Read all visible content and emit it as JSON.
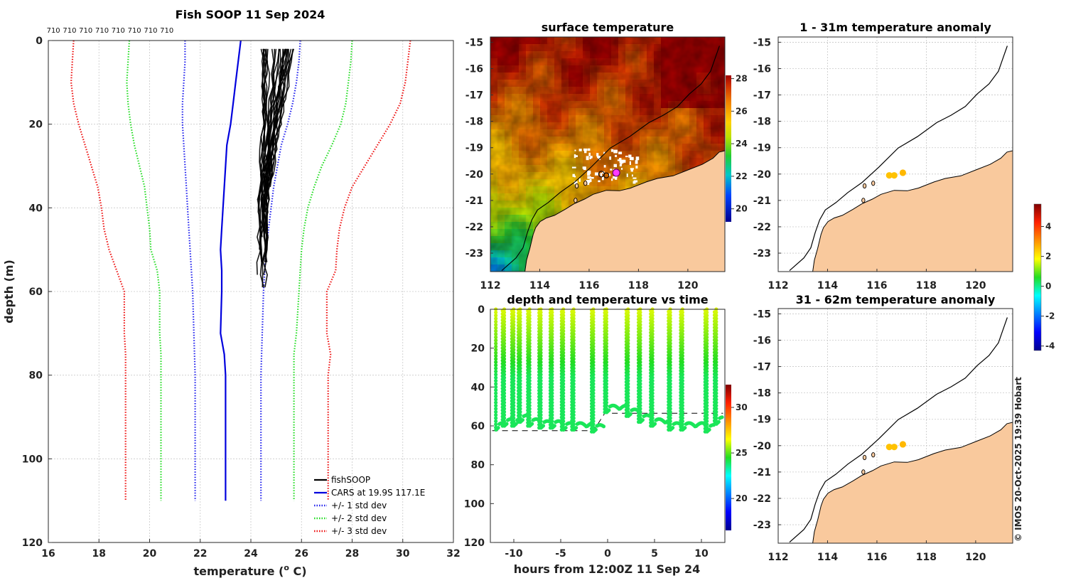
{
  "colors": {
    "land": "#f9c99d",
    "soop": "#000000",
    "cars": "#0000dd",
    "std1": "#2222ee",
    "std2": "#22dd22",
    "std3": "#ee1111",
    "track": "#6dd61c"
  },
  "chart_data": [
    {
      "type": "line",
      "title": "Fish SOOP 11 Sep 2024",
      "xlabel": "temperature (",
      "xlabel_sup": "o",
      "xlabel_tail": " C)",
      "ylabel": "depth (m)",
      "xlim": [
        16,
        32
      ],
      "ylim": [
        0,
        120
      ],
      "xticks": [
        16,
        18,
        20,
        22,
        24,
        26,
        28,
        30,
        32
      ],
      "yticks": [
        0,
        20,
        40,
        60,
        80,
        100,
        120
      ],
      "top_labels": {
        "text": "710",
        "count": 8,
        "start": 16.2,
        "step": 0.64
      },
      "legend": [
        "fishSOOP",
        "CARS at 19.9S 117.1E",
        "+/- 1 std dev",
        "+/- 2 std dev",
        "+/- 3 std dev"
      ],
      "series": [
        {
          "name": "CARS at 19.9S 117.1E",
          "points": [
            [
              23.6,
              0
            ],
            [
              23.5,
              5
            ],
            [
              23.4,
              10
            ],
            [
              23.3,
              15
            ],
            [
              23.2,
              20
            ],
            [
              23.05,
              25
            ],
            [
              23.0,
              30
            ],
            [
              22.95,
              35
            ],
            [
              22.9,
              40
            ],
            [
              22.85,
              45
            ],
            [
              22.8,
              50
            ],
            [
              22.85,
              55
            ],
            [
              22.85,
              60
            ],
            [
              22.8,
              70
            ],
            [
              22.95,
              75
            ],
            [
              23.0,
              80
            ],
            [
              23.0,
              90
            ],
            [
              23.0,
              100
            ],
            [
              23.0,
              110
            ]
          ]
        },
        {
          "name": "-1 std",
          "points": [
            [
              21.4,
              0
            ],
            [
              21.4,
              5
            ],
            [
              21.35,
              10
            ],
            [
              21.3,
              15
            ],
            [
              21.3,
              20
            ],
            [
              21.35,
              25
            ],
            [
              21.4,
              30
            ],
            [
              21.45,
              35
            ],
            [
              21.5,
              40
            ],
            [
              21.55,
              45
            ],
            [
              21.6,
              50
            ],
            [
              21.65,
              55
            ],
            [
              21.7,
              60
            ],
            [
              21.75,
              70
            ],
            [
              21.8,
              80
            ],
            [
              21.8,
              90
            ],
            [
              21.8,
              100
            ],
            [
              21.8,
              110
            ]
          ]
        },
        {
          "name": "+1 std",
          "points": [
            [
              25.95,
              0
            ],
            [
              25.9,
              5
            ],
            [
              25.8,
              10
            ],
            [
              25.65,
              15
            ],
            [
              25.45,
              20
            ],
            [
              25.2,
              25
            ],
            [
              25.05,
              30
            ],
            [
              24.9,
              35
            ],
            [
              24.8,
              40
            ],
            [
              24.7,
              45
            ],
            [
              24.6,
              50
            ],
            [
              24.55,
              55
            ],
            [
              24.5,
              60
            ],
            [
              24.45,
              70
            ],
            [
              24.4,
              80
            ],
            [
              24.4,
              90
            ],
            [
              24.4,
              100
            ],
            [
              24.4,
              110
            ]
          ]
        },
        {
          "name": "-2 std",
          "points": [
            [
              19.2,
              0
            ],
            [
              19.15,
              5
            ],
            [
              19.1,
              10
            ],
            [
              19.15,
              15
            ],
            [
              19.25,
              20
            ],
            [
              19.4,
              25
            ],
            [
              19.6,
              30
            ],
            [
              19.8,
              35
            ],
            [
              19.9,
              40
            ],
            [
              20.0,
              45
            ],
            [
              20.05,
              50
            ],
            [
              20.3,
              55
            ],
            [
              20.4,
              60
            ],
            [
              20.4,
              70
            ],
            [
              20.45,
              75
            ],
            [
              20.45,
              80
            ],
            [
              20.45,
              90
            ],
            [
              20.45,
              100
            ],
            [
              20.45,
              110
            ]
          ]
        },
        {
          "name": "+2 std",
          "points": [
            [
              28.0,
              0
            ],
            [
              27.95,
              5
            ],
            [
              27.85,
              10
            ],
            [
              27.75,
              15
            ],
            [
              27.55,
              20
            ],
            [
              27.2,
              25
            ],
            [
              26.8,
              30
            ],
            [
              26.5,
              35
            ],
            [
              26.25,
              40
            ],
            [
              26.1,
              45
            ],
            [
              26.0,
              50
            ],
            [
              25.95,
              55
            ],
            [
              25.9,
              60
            ],
            [
              25.8,
              70
            ],
            [
              25.7,
              75
            ],
            [
              25.7,
              80
            ],
            [
              25.7,
              90
            ],
            [
              25.7,
              100
            ],
            [
              25.7,
              110
            ]
          ]
        },
        {
          "name": "-3 std",
          "points": [
            [
              17.0,
              0
            ],
            [
              16.95,
              5
            ],
            [
              16.9,
              10
            ],
            [
              17.0,
              15
            ],
            [
              17.2,
              20
            ],
            [
              17.45,
              25
            ],
            [
              17.7,
              30
            ],
            [
              17.95,
              35
            ],
            [
              18.1,
              40
            ],
            [
              18.2,
              45
            ],
            [
              18.4,
              50
            ],
            [
              18.7,
              55
            ],
            [
              19.0,
              60
            ],
            [
              19.0,
              70
            ],
            [
              19.05,
              75
            ],
            [
              19.05,
              80
            ],
            [
              19.05,
              90
            ],
            [
              19.05,
              100
            ],
            [
              19.05,
              110
            ]
          ]
        },
        {
          "name": "+3 std",
          "points": [
            [
              30.3,
              0
            ],
            [
              30.2,
              5
            ],
            [
              30.1,
              10
            ],
            [
              29.9,
              15
            ],
            [
              29.5,
              20
            ],
            [
              29.0,
              25
            ],
            [
              28.5,
              30
            ],
            [
              28.0,
              35
            ],
            [
              27.7,
              40
            ],
            [
              27.5,
              45
            ],
            [
              27.4,
              50
            ],
            [
              27.35,
              55
            ],
            [
              27.0,
              60
            ],
            [
              27.0,
              70
            ],
            [
              27.15,
              75
            ],
            [
              27.05,
              80
            ],
            [
              27.05,
              90
            ],
            [
              27.05,
              100
            ],
            [
              27.05,
              110
            ]
          ]
        }
      ],
      "fishsoop": {
        "count": 28,
        "t_surface": [
          24.4,
          25.8
        ],
        "t_bottom": [
          24.3,
          24.7
        ],
        "max_depth": [
          36,
          62
        ]
      }
    },
    {
      "type": "heatmap",
      "title": "surface temperature",
      "xlim": [
        112,
        121.5
      ],
      "ylim": [
        -23.7,
        -14.8
      ],
      "xticks": [
        112,
        114,
        116,
        118,
        120
      ],
      "yticks": [
        -15,
        -16,
        -17,
        -18,
        -19,
        -20,
        -21,
        -22,
        -23
      ],
      "colorbar": {
        "min": 19.2,
        "max": 28.2,
        "ticks": [
          20,
          22,
          24,
          26,
          28
        ]
      },
      "field_model": {
        "offshore_cold": 22.6,
        "inshore_warm": 28.0
      }
    },
    {
      "type": "scatter",
      "title": "depth and temperature vs time",
      "xlabel": "hours from 12:00Z 11 Sep 24",
      "xlim": [
        -12.5,
        12.5
      ],
      "ylim": [
        0,
        120
      ],
      "xticks": [
        -10,
        -5,
        0,
        5,
        10
      ],
      "yticks": [
        0,
        20,
        40,
        60,
        80,
        100,
        120
      ],
      "colorbar": {
        "min": 16.5,
        "max": 32.5,
        "ticks": [
          20,
          25,
          30
        ]
      },
      "casts": [
        {
          "t": -11.9,
          "depth": 62
        },
        {
          "t": -11.0,
          "depth": 60
        },
        {
          "t": -10.0,
          "depth": 60
        },
        {
          "t": -9.3,
          "depth": 58
        },
        {
          "t": -8.3,
          "depth": 60
        },
        {
          "t": -7.1,
          "depth": 61
        },
        {
          "t": -5.9,
          "depth": 61
        },
        {
          "t": -4.7,
          "depth": 62
        },
        {
          "t": -3.6,
          "depth": 62
        },
        {
          "t": -1.5,
          "depth": 63
        },
        {
          "t": -0.1,
          "depth": 53
        },
        {
          "t": 2.2,
          "depth": 55
        },
        {
          "t": 3.5,
          "depth": 58
        },
        {
          "t": 4.8,
          "depth": 60
        },
        {
          "t": 6.7,
          "depth": 62
        },
        {
          "t": 8.0,
          "depth": 62
        },
        {
          "t": 10.6,
          "depth": 63
        },
        {
          "t": 11.6,
          "depth": 59
        }
      ],
      "bottom": [
        [
          -12.3,
          62.5
        ],
        [
          -1.5,
          62.5
        ],
        [
          -0.3,
          53.5
        ],
        [
          12.3,
          53.5
        ]
      ]
    },
    {
      "type": "heatmap",
      "title": "1 - 31m temperature anomaly",
      "xlim": [
        112,
        121.5
      ],
      "ylim": [
        -23.7,
        -14.8
      ],
      "xticks": [
        112,
        114,
        116,
        118,
        120
      ],
      "yticks": [
        -15,
        -16,
        -17,
        -18,
        -19,
        -20,
        -21,
        -22,
        -23
      ],
      "points": [
        {
          "lon": 116.5,
          "lat": -20.05,
          "anom": 2.5
        },
        {
          "lon": 116.7,
          "lat": -20.05,
          "anom": 2.5
        },
        {
          "lon": 117.05,
          "lat": -19.95,
          "anom": 2.6
        }
      ]
    },
    {
      "type": "heatmap",
      "title": "31 - 62m temperature anomaly",
      "xlim": [
        112,
        121.5
      ],
      "ylim": [
        -23.7,
        -14.8
      ],
      "xticks": [
        112,
        114,
        116,
        118,
        120
      ],
      "yticks": [
        -15,
        -16,
        -17,
        -18,
        -19,
        -20,
        -21,
        -22,
        -23
      ],
      "points": [
        {
          "lon": 116.5,
          "lat": -20.05,
          "anom": 2.5
        },
        {
          "lon": 116.7,
          "lat": -20.05,
          "anom": 2.5
        },
        {
          "lon": 117.05,
          "lat": -19.95,
          "anom": 2.6
        }
      ]
    }
  ],
  "anomaly_colorbar": {
    "min": -4.3,
    "max": 5.5,
    "ticks": [
      -4,
      -2,
      0,
      2,
      4
    ]
  },
  "geo": {
    "coast": [
      [
        113.4,
        -23.7
      ],
      [
        113.5,
        -23.3
      ],
      [
        113.6,
        -22.8
      ],
      [
        113.7,
        -22.3
      ],
      [
        113.85,
        -22.0
      ],
      [
        114.0,
        -21.8
      ],
      [
        114.3,
        -21.7
      ],
      [
        114.6,
        -21.55
      ],
      [
        115.0,
        -21.35
      ],
      [
        115.4,
        -21.1
      ],
      [
        115.8,
        -20.95
      ],
      [
        116.2,
        -20.8
      ],
      [
        116.7,
        -20.6
      ],
      [
        117.2,
        -20.65
      ],
      [
        117.7,
        -20.5
      ],
      [
        118.3,
        -20.3
      ],
      [
        118.8,
        -20.2
      ],
      [
        119.4,
        -20.05
      ],
      [
        120.0,
        -19.85
      ],
      [
        120.6,
        -19.6
      ],
      [
        121.0,
        -19.4
      ],
      [
        121.3,
        -19.2
      ],
      [
        121.5,
        -19.1
      ]
    ],
    "shelf": [
      [
        112.5,
        -23.7
      ],
      [
        113.0,
        -23.2
      ],
      [
        113.3,
        -22.8
      ],
      [
        113.5,
        -22.2
      ],
      [
        113.7,
        -21.7
      ],
      [
        113.95,
        -21.4
      ],
      [
        114.3,
        -21.1
      ],
      [
        114.8,
        -20.7
      ],
      [
        115.4,
        -20.3
      ],
      [
        116.1,
        -19.7
      ],
      [
        116.9,
        -19.05
      ],
      [
        117.6,
        -18.6
      ],
      [
        118.4,
        -18.05
      ],
      [
        119.0,
        -17.75
      ],
      [
        119.6,
        -17.4
      ],
      [
        120.1,
        -17.0
      ],
      [
        120.5,
        -16.6
      ],
      [
        120.9,
        -16.1
      ],
      [
        121.1,
        -15.6
      ],
      [
        121.3,
        -15.1
      ]
    ],
    "islands": [
      [
        115.45,
        -21.0
      ],
      [
        115.5,
        -20.45
      ],
      [
        115.85,
        -20.35
      ]
    ]
  },
  "copyright": "© IMOS 20-Oct-2025 19:39 Hobart"
}
